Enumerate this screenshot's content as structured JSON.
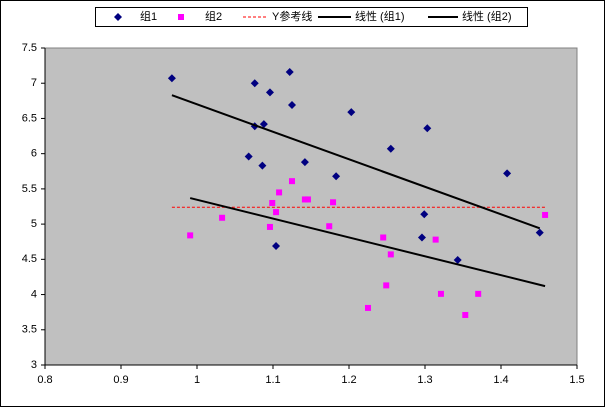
{
  "chart_data": {
    "type": "scatter",
    "xlim": [
      0.8,
      1.5
    ],
    "xticks": [
      0.8,
      0.9,
      1,
      1.1,
      1.2,
      1.3,
      1.4,
      1.5
    ],
    "ylim": [
      3,
      7.5
    ],
    "yticks": [
      3,
      3.5,
      4,
      4.5,
      5,
      5.5,
      6,
      6.5,
      7,
      7.5
    ],
    "plot_background": "#c0c0c0",
    "series": [
      {
        "name": "组1",
        "color": "#000080",
        "marker": "diamond",
        "x": [
          0.967,
          1.076,
          1.122,
          1.096,
          1.125,
          1.088,
          1.076,
          1.203,
          1.303,
          1.255,
          1.068,
          1.086,
          1.142,
          1.183,
          1.408,
          1.299,
          1.296,
          1.451,
          1.343,
          1.104
        ],
        "values": [
          7.07,
          7.0,
          7.16,
          6.87,
          6.69,
          6.42,
          6.39,
          6.59,
          6.36,
          6.07,
          5.96,
          5.83,
          5.88,
          5.68,
          5.72,
          5.14,
          4.81,
          4.88,
          4.49,
          4.69
        ]
      },
      {
        "name": "组2",
        "color": "#ff00ff",
        "marker": "square",
        "x": [
          0.991,
          1.033,
          1.108,
          1.125,
          1.099,
          1.104,
          1.142,
          1.146,
          1.179,
          1.096,
          1.174,
          1.245,
          1.314,
          1.255,
          1.249,
          1.225,
          1.321,
          1.37,
          1.353,
          1.458
        ],
        "values": [
          4.84,
          5.09,
          5.45,
          5.61,
          5.3,
          5.17,
          5.35,
          5.35,
          5.31,
          4.96,
          4.97,
          4.81,
          4.78,
          4.57,
          4.13,
          3.81,
          4.01,
          4.01,
          3.71,
          5.13
        ]
      },
      {
        "name": "Y参考线",
        "color": "#ff0000",
        "line": "dashed",
        "x": [
          0.967,
          1.458
        ],
        "values": [
          5.24,
          5.24
        ]
      },
      {
        "name": "线性 (组1)",
        "color": "#000000",
        "line": "solid",
        "x": [
          0.967,
          1.451
        ],
        "values": [
          6.83,
          4.94
        ]
      },
      {
        "name": "线性 (组2)",
        "color": "#000000",
        "line": "solid",
        "x": [
          0.991,
          1.458
        ],
        "values": [
          5.37,
          4.12
        ]
      }
    ]
  }
}
